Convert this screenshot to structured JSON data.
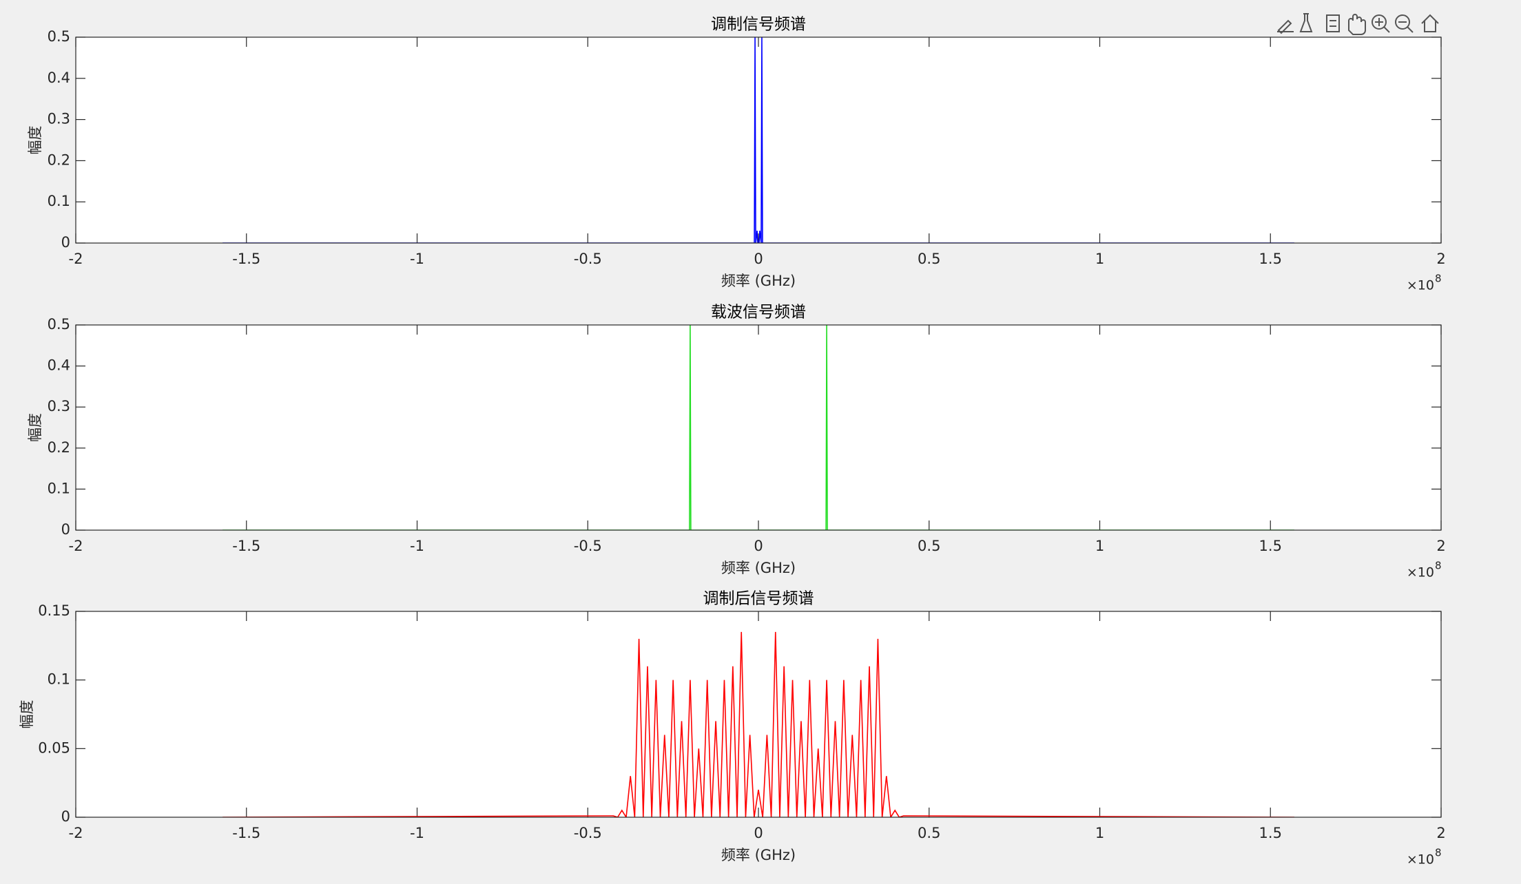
{
  "chart_data": [
    {
      "type": "line",
      "title": "调制信号频谱",
      "xlabel": "频率 (GHz)",
      "ylabel": "幅度",
      "x": [
        -1.57,
        -0.012,
        -0.01,
        -0.008,
        -0.004,
        -0.002,
        0,
        0.002,
        0.004,
        0.008,
        0.01,
        0.012,
        1.57
      ],
      "values": [
        0,
        0,
        0.5,
        0,
        0.03,
        0,
        0,
        0,
        0.03,
        0,
        0.5,
        0,
        0
      ],
      "color": "#0000ff",
      "xlim": [
        -2,
        2
      ],
      "xticks": [
        -2,
        -1.5,
        -1,
        -0.5,
        0,
        0.5,
        1,
        1.5,
        2
      ],
      "ylim": [
        0,
        0.5
      ],
      "yticks": [
        0,
        0.1,
        0.2,
        0.3,
        0.4,
        0.5
      ],
      "x_exponent_label": "×10",
      "x_exponent": 8
    },
    {
      "type": "line",
      "title": "载波信号频谱",
      "xlabel": "频率 (GHz)",
      "ylabel": "幅度",
      "x": [
        -1.57,
        -0.202,
        -0.2,
        -0.198,
        0.198,
        0.2,
        0.202,
        1.57
      ],
      "values": [
        0,
        0,
        0.5,
        0,
        0,
        0.5,
        0,
        0
      ],
      "color": "#22dd22",
      "xlim": [
        -2,
        2
      ],
      "xticks": [
        -2,
        -1.5,
        -1,
        -0.5,
        0,
        0.5,
        1,
        1.5,
        2
      ],
      "ylim": [
        0,
        0.5
      ],
      "yticks": [
        0,
        0.1,
        0.2,
        0.3,
        0.4,
        0.5
      ],
      "x_exponent_label": "×10",
      "x_exponent": 8
    },
    {
      "type": "line",
      "title": "调制后信号频谱",
      "xlabel": "频率 (GHz)",
      "ylabel": "幅度",
      "x": [
        -1.57,
        -0.425,
        -0.4125,
        -0.4,
        -0.3875,
        -0.375,
        -0.3625,
        -0.35,
        -0.3375,
        -0.325,
        -0.3125,
        -0.3,
        -0.2875,
        -0.275,
        -0.2625,
        -0.25,
        -0.2375,
        -0.225,
        -0.2125,
        -0.2,
        -0.1875,
        -0.175,
        -0.1625,
        -0.15,
        -0.1375,
        -0.125,
        -0.1125,
        -0.1,
        -0.0875,
        -0.075,
        -0.0625,
        -0.05,
        -0.0375,
        -0.025,
        -0.0125,
        0,
        0.0125,
        0.025,
        0.0375,
        0.05,
        0.0625,
        0.075,
        0.0875,
        0.1,
        0.1125,
        0.125,
        0.1375,
        0.15,
        0.1625,
        0.175,
        0.1875,
        0.2,
        0.2125,
        0.225,
        0.2375,
        0.25,
        0.2625,
        0.275,
        0.2875,
        0.3,
        0.3125,
        0.325,
        0.3375,
        0.35,
        0.3625,
        0.375,
        0.3875,
        0.4,
        0.4125,
        0.425,
        1.57
      ],
      "values": [
        0,
        0.001,
        0,
        0.005,
        0,
        0.03,
        0,
        0.13,
        0,
        0.11,
        0,
        0.1,
        0,
        0.06,
        0,
        0.1,
        0,
        0.07,
        0,
        0.1,
        0,
        0.05,
        0,
        0.1,
        0,
        0.07,
        0,
        0.1,
        0,
        0.11,
        0,
        0.135,
        0,
        0.06,
        0,
        0.02,
        0,
        0.06,
        0,
        0.135,
        0,
        0.11,
        0,
        0.1,
        0,
        0.07,
        0,
        0.1,
        0,
        0.05,
        0,
        0.1,
        0,
        0.07,
        0,
        0.1,
        0,
        0.06,
        0,
        0.1,
        0,
        0.11,
        0,
        0.13,
        0,
        0.03,
        0,
        0.005,
        0,
        0.001,
        0
      ],
      "color": "#ff0000",
      "xlim": [
        -2,
        2
      ],
      "xticks": [
        -2,
        -1.5,
        -1,
        -0.5,
        0,
        0.5,
        1,
        1.5,
        2
      ],
      "ylim": [
        0,
        0.15
      ],
      "yticks": [
        0,
        0.05,
        0.1,
        0.15
      ],
      "x_exponent_label": "×10",
      "x_exponent": 8
    }
  ]
}
